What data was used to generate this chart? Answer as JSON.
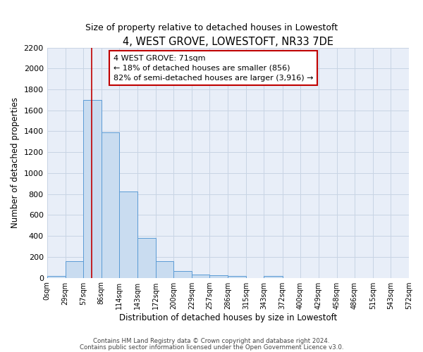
{
  "title": "4, WEST GROVE, LOWESTOFT, NR33 7DE",
  "subtitle": "Size of property relative to detached houses in Lowestoft",
  "xlabel": "Distribution of detached houses by size in Lowestoft",
  "ylabel": "Number of detached properties",
  "bin_edges": [
    0,
    29,
    57,
    86,
    114,
    143,
    172,
    200,
    229,
    257,
    286,
    315,
    343,
    372,
    400,
    429,
    458,
    486,
    515,
    543,
    572
  ],
  "bar_heights": [
    15,
    160,
    1700,
    1390,
    825,
    380,
    160,
    65,
    30,
    25,
    20,
    0,
    15,
    0,
    0,
    0,
    0,
    0,
    0,
    0
  ],
  "bar_color": "#c9dcf0",
  "bar_edge_color": "#5b9bd5",
  "property_line_x": 71,
  "property_line_color": "#c00000",
  "annotation_text": "4 WEST GROVE: 71sqm\n← 18% of detached houses are smaller (856)\n82% of semi-detached houses are larger (3,916) →",
  "annotation_box_color": "#ffffff",
  "annotation_box_edge": "#c00000",
  "ylim": [
    0,
    2200
  ],
  "yticks": [
    0,
    200,
    400,
    600,
    800,
    1000,
    1200,
    1400,
    1600,
    1800,
    2000,
    2200
  ],
  "tick_labels": [
    "0sqm",
    "29sqm",
    "57sqm",
    "86sqm",
    "114sqm",
    "143sqm",
    "172sqm",
    "200sqm",
    "229sqm",
    "257sqm",
    "286sqm",
    "315sqm",
    "343sqm",
    "372sqm",
    "400sqm",
    "429sqm",
    "458sqm",
    "486sqm",
    "515sqm",
    "543sqm",
    "572sqm"
  ],
  "footer_line1": "Contains HM Land Registry data © Crown copyright and database right 2024.",
  "footer_line2": "Contains public sector information licensed under the Open Government Licence v3.0.",
  "grid_color": "#c8d4e4",
  "background_color": "#e8eef8"
}
